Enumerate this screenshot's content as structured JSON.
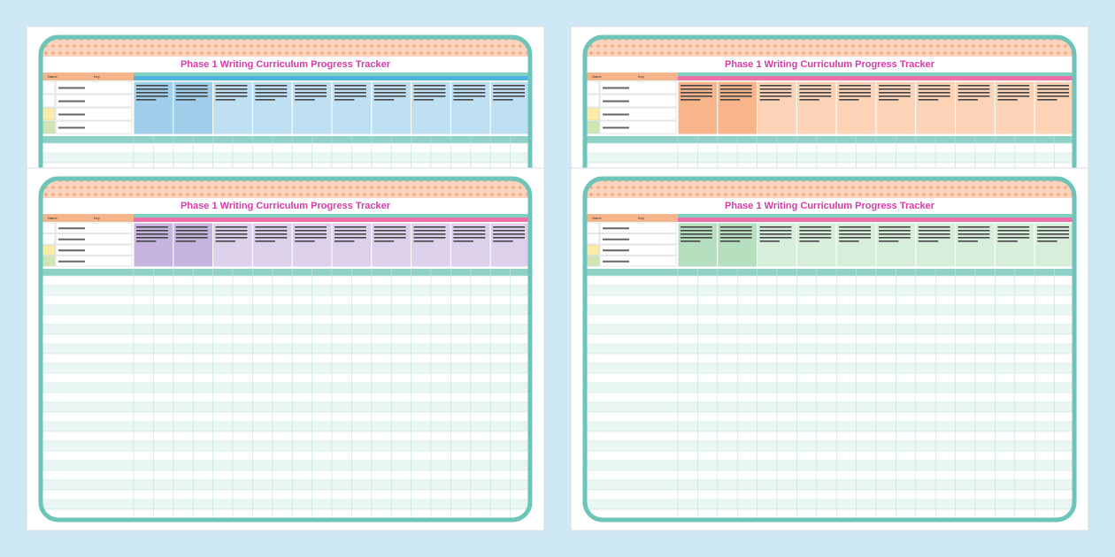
{
  "pages": [
    {
      "title": "Phase 1 Writing Curriculum Progress Tracker",
      "name_label": "Name",
      "key_label": "Key"
    },
    {
      "title": "Phase 1 Writing Curriculum Progress Tracker",
      "name_label": "Name",
      "key_label": "Key"
    },
    {
      "title": "Phase 1 Writing Curriculum Progress Tracker",
      "name_label": "Name",
      "key_label": "Key"
    },
    {
      "title": "Phase 1 Writing Curriculum Progress Tracker",
      "name_label": "Name",
      "key_label": "Key"
    }
  ]
}
